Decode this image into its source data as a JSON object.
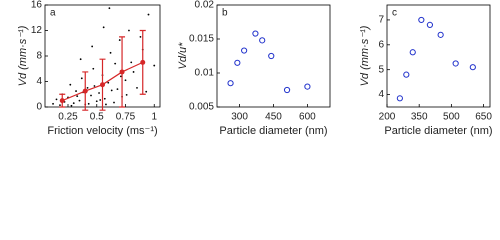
{
  "chart_data": [
    {
      "type": "scatter",
      "label": "a",
      "xlabel": "Friction velocity (ms⁻¹)",
      "ylabel": "Vd (mm·s⁻¹)",
      "xlim": [
        0.05,
        1.05
      ],
      "ylim": [
        0,
        16
      ],
      "xticks": [
        0.25,
        0.5,
        0.75,
        1
      ],
      "yticks": [
        0,
        4,
        8,
        12,
        16
      ],
      "series": [
        {
          "color": "#000000",
          "marker": "dot",
          "x": [
            0.12,
            0.15,
            0.18,
            0.2,
            0.22,
            0.25,
            0.27,
            0.3,
            0.32,
            0.35,
            0.37,
            0.4,
            0.42,
            0.45,
            0.47,
            0.5,
            0.52,
            0.55,
            0.57,
            0.6,
            0.62,
            0.65,
            0.68,
            0.7,
            0.72,
            0.75,
            0.78,
            0.8,
            0.85,
            0.9,
            0.95,
            1.0,
            0.28,
            0.33,
            0.38,
            0.43,
            0.48,
            0.53,
            0.58,
            0.63,
            0.66,
            0.71,
            0.76,
            0.82,
            0.88,
            0.93,
            0.36,
            0.46,
            0.56,
            0.61
          ],
          "values": [
            0.5,
            1.2,
            0.3,
            2.0,
            0.8,
            1.5,
            3.5,
            0.6,
            2.5,
            1.0,
            4.5,
            0.4,
            3.0,
            1.8,
            6.0,
            0.9,
            2.2,
            5.0,
            1.3,
            3.8,
            8.5,
            0.7,
            2.8,
            10.5,
            1.6,
            4.2,
            12.0,
            7.0,
            3.0,
            9.0,
            14.5,
            6.5,
            0.2,
            1.7,
            2.3,
            0.5,
            3.3,
            1.1,
            0.4,
            2.6,
            6.8,
            4.8,
            1.9,
            5.5,
            11.0,
            2.4,
            7.5,
            9.5,
            12.5,
            15.5
          ]
        },
        {
          "color": "#d62728",
          "marker": "mean",
          "x": [
            0.2,
            0.4,
            0.55,
            0.72,
            0.9
          ],
          "values": [
            1,
            2.5,
            3.5,
            5.5,
            7
          ],
          "errors": [
            1,
            3,
            4,
            5.5,
            5
          ]
        }
      ]
    },
    {
      "type": "scatter",
      "label": "b",
      "xlabel": "Particle diameter (nm)",
      "ylabel": "Vd/u*",
      "xlim": [
        200,
        700
      ],
      "ylim": [
        0.005,
        0.02
      ],
      "xticks": [
        300,
        450,
        600
      ],
      "yticks": [
        0.005,
        0.01,
        0.015,
        0.02
      ],
      "series": [
        {
          "color": "#2233cc",
          "marker": "circle",
          "x": [
            260,
            290,
            320,
            370,
            400,
            440,
            510,
            600
          ],
          "values": [
            0.0085,
            0.0115,
            0.0133,
            0.0158,
            0.0148,
            0.0125,
            0.0075,
            0.008
          ]
        }
      ]
    },
    {
      "type": "scatter",
      "label": "c",
      "xlabel": "Particle diameter (nm)",
      "ylabel": "Vd (mm·s⁻¹)",
      "xlim": [
        200,
        680
      ],
      "ylim": [
        3.5,
        7.6
      ],
      "xticks": [
        200,
        350,
        500,
        650
      ],
      "yticks": [
        4,
        5,
        6,
        7
      ],
      "series": [
        {
          "color": "#2233cc",
          "marker": "circle",
          "x": [
            260,
            290,
            320,
            360,
            400,
            450,
            520,
            600
          ],
          "values": [
            3.85,
            4.8,
            5.7,
            7.0,
            6.8,
            6.4,
            5.25,
            5.1
          ]
        }
      ]
    }
  ]
}
